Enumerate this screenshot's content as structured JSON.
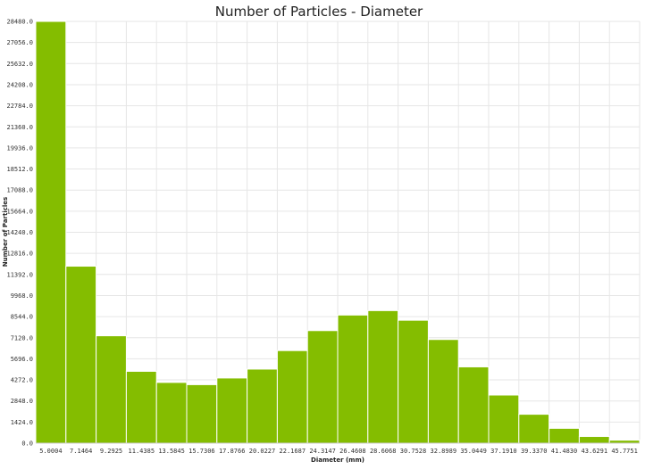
{
  "chart_data": {
    "type": "bar",
    "title": "Number of Particles - Diameter",
    "xlabel": "Diameter (mm)",
    "ylabel": "Number of Particles",
    "ylim": [
      0,
      28480
    ],
    "grid": true,
    "bar_color": "#84bd00",
    "y_ticks": [
      "0.0",
      "1424.0",
      "2848.0",
      "4272.0",
      "5696.0",
      "7120.0",
      "8544.0",
      "9968.0",
      "11392.0",
      "12816.0",
      "14240.0",
      "15664.0",
      "17088.0",
      "18512.0",
      "19936.0",
      "21360.0",
      "22784.0",
      "24208.0",
      "25632.0",
      "27056.0",
      "28480.0"
    ],
    "categories": [
      "5.0004",
      "7.1464",
      "9.2925",
      "11.4385",
      "13.5845",
      "15.7306",
      "17.8766",
      "20.0227",
      "22.1687",
      "24.3147",
      "26.4608",
      "28.6068",
      "30.7528",
      "32.8989",
      "35.0449",
      "37.1910",
      "39.3370",
      "41.4830",
      "43.6291",
      "45.7751"
    ],
    "values": [
      28480,
      11950,
      7250,
      4850,
      4100,
      3950,
      4400,
      5000,
      6250,
      7600,
      8650,
      8950,
      8300,
      7000,
      5150,
      3250,
      1950,
      1000,
      450,
      200
    ]
  }
}
